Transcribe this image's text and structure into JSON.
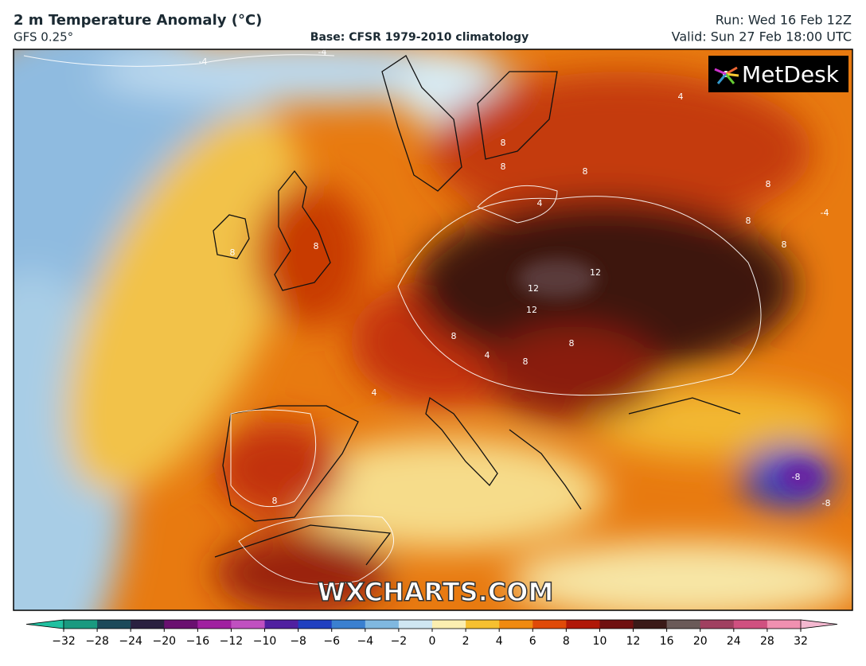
{
  "header": {
    "title": "2 m Temperature Anomaly (°C)",
    "model": "GFS 0.25°",
    "base": "Base: CFSR 1979-2010 climatology",
    "run": "Run: Wed 16 Feb 12Z",
    "valid": "Valid: Sun 27 Feb 18:00 UTC"
  },
  "map": {
    "logo": "MetDesk",
    "watermark": "WXCHARTS.COM",
    "contour_labels": [
      "-4",
      "-4",
      "-4",
      "4",
      "8",
      "8",
      "8",
      "8",
      "8",
      "12",
      "12",
      "12",
      "8",
      "8",
      "8",
      "4",
      "4",
      "8",
      "8",
      "8",
      "4",
      "8",
      "-8",
      "-8"
    ]
  },
  "colorbar": {
    "ticks": [
      {
        "value": -32,
        "label": "−32"
      },
      {
        "value": -28,
        "label": "−28"
      },
      {
        "value": -24,
        "label": "−24"
      },
      {
        "value": -20,
        "label": "−20"
      },
      {
        "value": -16,
        "label": "−16"
      },
      {
        "value": -12,
        "label": "−12"
      },
      {
        "value": -10,
        "label": "−10"
      },
      {
        "value": -8,
        "label": "−8"
      },
      {
        "value": -6,
        "label": "−6"
      },
      {
        "value": -4,
        "label": "−4"
      },
      {
        "value": -2,
        "label": "−2"
      },
      0,
      2,
      4,
      6,
      8,
      10,
      12,
      16,
      20,
      24,
      28,
      32
    ]
  }
}
